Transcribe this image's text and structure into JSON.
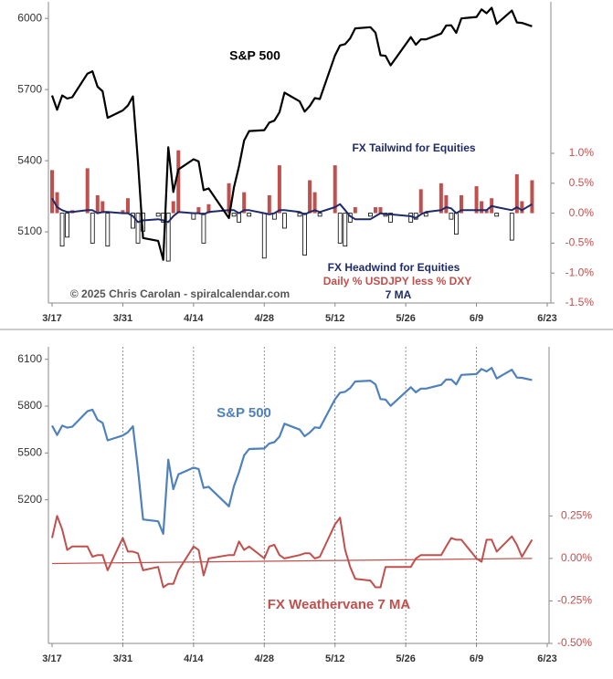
{
  "chart_data": [
    {
      "type": "combo",
      "x": [
        "3/17",
        "3/18",
        "3/19",
        "3/20",
        "3/21",
        "3/24",
        "3/25",
        "3/26",
        "3/27",
        "3/28",
        "3/31",
        "4/1",
        "4/2",
        "4/3",
        "4/4",
        "4/7",
        "4/8",
        "4/9",
        "4/10",
        "4/11",
        "4/14",
        "4/15",
        "4/16",
        "4/17",
        "4/21",
        "4/22",
        "4/23",
        "4/24",
        "4/25",
        "4/28",
        "4/29",
        "4/30",
        "5/1",
        "5/2",
        "5/5",
        "5/6",
        "5/7",
        "5/8",
        "5/9",
        "5/12",
        "5/13",
        "5/14",
        "5/15",
        "5/16",
        "5/19",
        "5/20",
        "5/21",
        "5/22",
        "5/23",
        "5/27",
        "5/28",
        "5/29",
        "5/30",
        "6/2",
        "6/3",
        "6/4",
        "6/5",
        "6/6",
        "6/9",
        "6/10",
        "6/11",
        "6/12",
        "6/13",
        "6/16",
        "6/17",
        "6/18",
        "6/20"
      ],
      "xlim": [
        "3/17",
        "6/23"
      ],
      "xticks": [
        "3/17",
        "3/31",
        "4/14",
        "4/28",
        "5/12",
        "5/26",
        "6/9",
        "6/23"
      ],
      "ylim": [
        4800,
        6070
      ],
      "yticks": [
        5100,
        5400,
        5700,
        6000
      ],
      "y2lim": [
        -1.5,
        3.53
      ],
      "y2ticks": [
        {
          "value": 1.0,
          "label": "1.0%"
        },
        {
          "value": 0.5,
          "label": "0.5%"
        },
        {
          "value": 0.0,
          "label": "0.0%"
        },
        {
          "value": -0.5,
          "label": "-0.5%"
        },
        {
          "value": -1.0,
          "label": "-1.0%"
        },
        {
          "value": -1.5,
          "label": "-1.5%"
        }
      ],
      "grid": false,
      "series": [
        {
          "type": "bar",
          "axis": "y2",
          "color": "#c0504d",
          "negative_color": "#ffffff",
          "values": [
            0.72,
            0.35,
            -0.55,
            -0.4,
            0.05,
            0.75,
            -0.5,
            0.3,
            0.2,
            -0.55,
            0.05,
            0.25,
            -0.25,
            -0.5,
            -0.3,
            -0.05,
            -0.15,
            -0.8,
            0.2,
            1.05,
            -0.1,
            0.1,
            -0.5,
            0.15,
            0.5,
            -0.05,
            -0.15,
            0.35,
            -0.05,
            -0.75,
            0.3,
            -0.1,
            0.8,
            -0.25,
            -0.05,
            -0.7,
            0.55,
            0.35,
            -0.05,
            0.8,
            -0.5,
            -0.55,
            -0.15,
            0.1,
            -0.05,
            0.1,
            0.1,
            -0.05,
            -0.15,
            -0.15,
            -0.1,
            0.4,
            -0.05,
            0.5,
            0.3,
            -0.1,
            -0.35,
            0.3,
            0.45,
            0.2,
            0.05,
            0.25,
            -0.05,
            -0.45,
            0.65,
            0.2,
            0.55
          ]
        },
        {
          "type": "line",
          "axis": "y2",
          "color": "#1f2a6b",
          "values": [
            0.25,
            0.1,
            0.05,
            0.02,
            0.02,
            0.05,
            0.05,
            0.0,
            0.02,
            0.02,
            0.0,
            0.0,
            -0.05,
            -0.15,
            -0.12,
            -0.1,
            -0.12,
            -0.15,
            -0.05,
            0.02,
            0.0,
            0.0,
            -0.02,
            0.02,
            0.05,
            0.05,
            0.0,
            0.05,
            0.05,
            0.0,
            -0.02,
            0.0,
            0.05,
            0.05,
            0.02,
            -0.02,
            0.02,
            0.05,
            0.02,
            0.1,
            0.15,
            0.05,
            -0.05,
            -0.1,
            -0.1,
            -0.05,
            0.0,
            -0.02,
            -0.02,
            -0.05,
            -0.08,
            -0.02,
            0.02,
            0.05,
            0.1,
            0.08,
            0.0,
            0.05,
            0.05,
            0.05,
            0.05,
            0.12,
            0.1,
            0.05,
            0.1,
            0.05,
            0.15
          ]
        },
        {
          "type": "line",
          "axis": "y",
          "color": "#000000",
          "values": [
            5675,
            5615,
            5675,
            5662,
            5668,
            5767,
            5777,
            5712,
            5693,
            5581,
            5612,
            5633,
            5671,
            5397,
            5074,
            5062,
            4982,
            5457,
            5268,
            5363,
            5406,
            5397,
            5276,
            5283,
            5158,
            5288,
            5376,
            5485,
            5525,
            5529,
            5561,
            5569,
            5604,
            5687,
            5650,
            5607,
            5631,
            5664,
            5660,
            5844,
            5886,
            5892,
            5916,
            5958,
            5963,
            5940,
            5845,
            5842,
            5802,
            5921,
            5889,
            5912,
            5912,
            5936,
            5970,
            5971,
            5939,
            6000,
            6006,
            6038,
            6022,
            6045,
            5977,
            6033,
            5983,
            5981,
            5967
          ]
        }
      ],
      "annotations": [
        {
          "text": "S&P 500",
          "color": "#000000"
        },
        {
          "text": "FX Tailwind for Equities",
          "color": "#1f2a6b"
        },
        {
          "text": "FX Headwind for Equities",
          "color": "#1f2a6b"
        },
        {
          "text": "Daily % USDJPY less % DXY",
          "color": "#c0504d"
        },
        {
          "text": "7 MA",
          "color": "#1f2a6b"
        },
        {
          "text": "© 2025 Chris Carolan - spiralcalendar.com",
          "color": "#555555"
        }
      ]
    },
    {
      "type": "line",
      "x": [
        "3/17",
        "3/18",
        "3/19",
        "3/20",
        "3/21",
        "3/24",
        "3/25",
        "3/26",
        "3/27",
        "3/28",
        "3/31",
        "4/1",
        "4/2",
        "4/3",
        "4/4",
        "4/7",
        "4/8",
        "4/9",
        "4/10",
        "4/11",
        "4/14",
        "4/15",
        "4/16",
        "4/17",
        "4/21",
        "4/22",
        "4/23",
        "4/24",
        "4/25",
        "4/28",
        "4/29",
        "4/30",
        "5/1",
        "5/2",
        "5/5",
        "5/6",
        "5/7",
        "5/8",
        "5/9",
        "5/12",
        "5/13",
        "5/14",
        "5/15",
        "5/16",
        "5/19",
        "5/20",
        "5/21",
        "5/22",
        "5/23",
        "5/27",
        "5/28",
        "5/29",
        "5/30",
        "6/2",
        "6/3",
        "6/4",
        "6/5",
        "6/6",
        "6/9",
        "6/10",
        "6/11",
        "6/12",
        "6/13",
        "6/16",
        "6/17",
        "6/18",
        "6/20"
      ],
      "xlim": [
        "3/17",
        "6/23"
      ],
      "xticks": [
        "3/17",
        "3/31",
        "4/14",
        "4/28",
        "5/12",
        "5/26",
        "6/9",
        "6/23"
      ],
      "ylim": [
        4280,
        6180
      ],
      "yticks": [
        5200,
        5500,
        5800,
        6100
      ],
      "y2lim": [
        -0.5,
        1.245
      ],
      "y2ticks": [
        {
          "value": 0.25,
          "label": "0.25%"
        },
        {
          "value": 0.0,
          "label": "0.00%"
        },
        {
          "value": -0.25,
          "label": "-0.25%"
        },
        {
          "value": -0.5,
          "label": "-0.50%"
        }
      ],
      "grid": true,
      "series": [
        {
          "type": "line",
          "axis": "y",
          "color": "#4f81bd",
          "values": [
            5675,
            5615,
            5675,
            5662,
            5668,
            5767,
            5777,
            5712,
            5693,
            5581,
            5612,
            5633,
            5671,
            5397,
            5074,
            5062,
            4982,
            5457,
            5268,
            5363,
            5406,
            5397,
            5276,
            5283,
            5158,
            5288,
            5376,
            5485,
            5525,
            5529,
            5561,
            5569,
            5604,
            5687,
            5650,
            5607,
            5631,
            5664,
            5660,
            5844,
            5886,
            5892,
            5916,
            5958,
            5963,
            5940,
            5845,
            5842,
            5802,
            5921,
            5889,
            5912,
            5912,
            5936,
            5970,
            5971,
            5939,
            6000,
            6006,
            6038,
            6022,
            6045,
            5977,
            6033,
            5983,
            5981,
            5967
          ]
        },
        {
          "type": "line",
          "axis": "y2",
          "color": "#c0504d",
          "values": [
            0.12,
            0.25,
            0.17,
            0.05,
            0.07,
            0.07,
            0.01,
            0.02,
            0.02,
            -0.07,
            0.12,
            0.04,
            0.04,
            0.03,
            -0.07,
            -0.05,
            -0.17,
            -0.15,
            -0.15,
            -0.07,
            0.07,
            0.05,
            -0.1,
            0.0,
            0.02,
            0.02,
            0.1,
            0.05,
            0.07,
            0.0,
            0.07,
            0.08,
            0.02,
            0.0,
            0.02,
            0.03,
            0.03,
            0.0,
            0.01,
            0.2,
            0.24,
            0.05,
            -0.05,
            -0.12,
            -0.13,
            -0.17,
            -0.17,
            -0.05,
            -0.05,
            -0.05,
            0.0,
            0.02,
            0.02,
            0.02,
            0.07,
            0.12,
            0.11,
            0.11,
            0.0,
            -0.02,
            0.11,
            0.11,
            0.04,
            0.13,
            0.08,
            0.01,
            0.11
          ]
        }
      ],
      "trend": {
        "x": [
          "3/17",
          "6/20"
        ],
        "values": [
          -0.03,
          0.0
        ],
        "color": "#c0504d"
      },
      "annotations": [
        {
          "text": "S&P 500",
          "color": "#4f81bd"
        },
        {
          "text": "FX Weathervane 7 MA",
          "color": "#c0504d"
        }
      ]
    }
  ]
}
